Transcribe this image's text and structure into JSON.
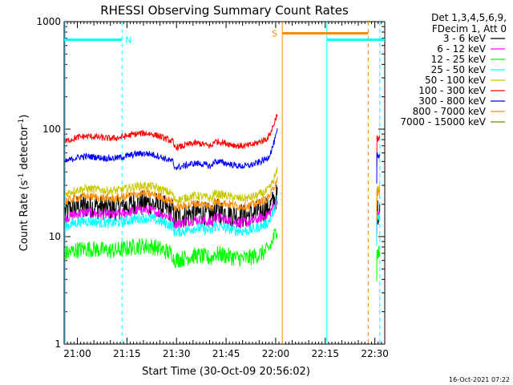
{
  "chart_data": {
    "type": "line",
    "title": "RHESSI Observing Summary Count Rates",
    "xlabel": "Start Time (30-Oct-09 20:56:02)",
    "ylabel_main": "Count Rate (s",
    "ylabel_sup1": "-1",
    "ylabel_mid": " detector",
    "ylabel_sup2": "-1",
    "ylabel_end": ")",
    "x_start_min": 0,
    "x_end_min": 97,
    "yscale": "log",
    "ylim": [
      1,
      1000
    ],
    "y_ticks": [
      {
        "value": 1,
        "label": "1"
      },
      {
        "value": 10,
        "label": "10"
      },
      {
        "value": 100,
        "label": "100"
      },
      {
        "value": 1000,
        "label": "1000"
      }
    ],
    "x_ticks": [
      {
        "min": 4,
        "label": "21:00"
      },
      {
        "min": 19,
        "label": "21:15"
      },
      {
        "min": 34,
        "label": "21:30"
      },
      {
        "min": 49,
        "label": "21:45"
      },
      {
        "min": 64,
        "label": "22:00"
      },
      {
        "min": 79,
        "label": "22:15"
      },
      {
        "min": 94,
        "label": "22:30"
      }
    ],
    "legend_header_1": "Det 1,3,4,5,6,9,",
    "legend_header_2": "FDecim 1, Att 0",
    "series": [
      {
        "name": "3 - 6 keV",
        "color": "#000000",
        "base": 18,
        "noise": 0.12,
        "end_value": 17,
        "recover_value": 17
      },
      {
        "name": "6 - 12 keV",
        "color": "#ff00ff",
        "base": 15.5,
        "noise": 0.05,
        "end_value": 16,
        "recover_value": 16
      },
      {
        "name": "12 - 25 keV",
        "color": "#00ff00",
        "base": 7.2,
        "noise": 0.08,
        "end_value": 9,
        "recover_value": 7
      },
      {
        "name": "25 - 50 keV",
        "color": "#00ffff",
        "base": 13,
        "noise": 0.05,
        "end_value": 16,
        "recover_value": 15
      },
      {
        "name": "50 - 100 keV",
        "color": "#c8c800",
        "base": 26,
        "noise": 0.04,
        "end_value": 30,
        "recover_value": 28
      },
      {
        "name": "100 - 300 keV",
        "color": "#ff0000",
        "base": 80,
        "noise": 0.03,
        "end_value": 105,
        "recover_value": 82
      },
      {
        "name": "300 - 800 keV",
        "color": "#0000ff",
        "base": 52,
        "noise": 0.03,
        "end_value": 72,
        "recover_value": 57
      },
      {
        "name": "800 - 7000 keV",
        "color": "#ff8c00",
        "base": 22,
        "noise": 0.04,
        "end_value": 26,
        "recover_value": 26
      },
      {
        "name": "7000 - 15000 keV",
        "color": "#808000",
        "base": 0,
        "noise": 0,
        "end_value": 0,
        "recover_value": 0
      }
    ],
    "data_gap": {
      "start_min": 64.5,
      "end_min": 94.5
    },
    "flag_bars": [
      {
        "label": "N",
        "color": "#00ffff",
        "x0": 0,
        "x1": 17.5,
        "y": 680
      },
      {
        "label": "",
        "color": "#00ffff",
        "x0": 79.5,
        "x1": 97,
        "y": 680
      },
      {
        "label": "S",
        "color": "#ff8c00",
        "x0": 66,
        "x1": 92,
        "y": 780
      }
    ],
    "vertical_lines": [
      {
        "min": 0.3,
        "color": "#00ffff",
        "dashed": false
      },
      {
        "min": 17.5,
        "color": "#00ffff",
        "dashed": true
      },
      {
        "min": 66,
        "color": "#ff8c00",
        "dashed": false
      },
      {
        "min": 79.5,
        "color": "#00ffff",
        "dashed": false
      },
      {
        "min": 92,
        "color": "#ff8c00",
        "dashed": true
      },
      {
        "min": 95.5,
        "color": "#00ffff",
        "dashed": true
      }
    ]
  },
  "footer_timestamp": "16-Oct-2021 07:22"
}
